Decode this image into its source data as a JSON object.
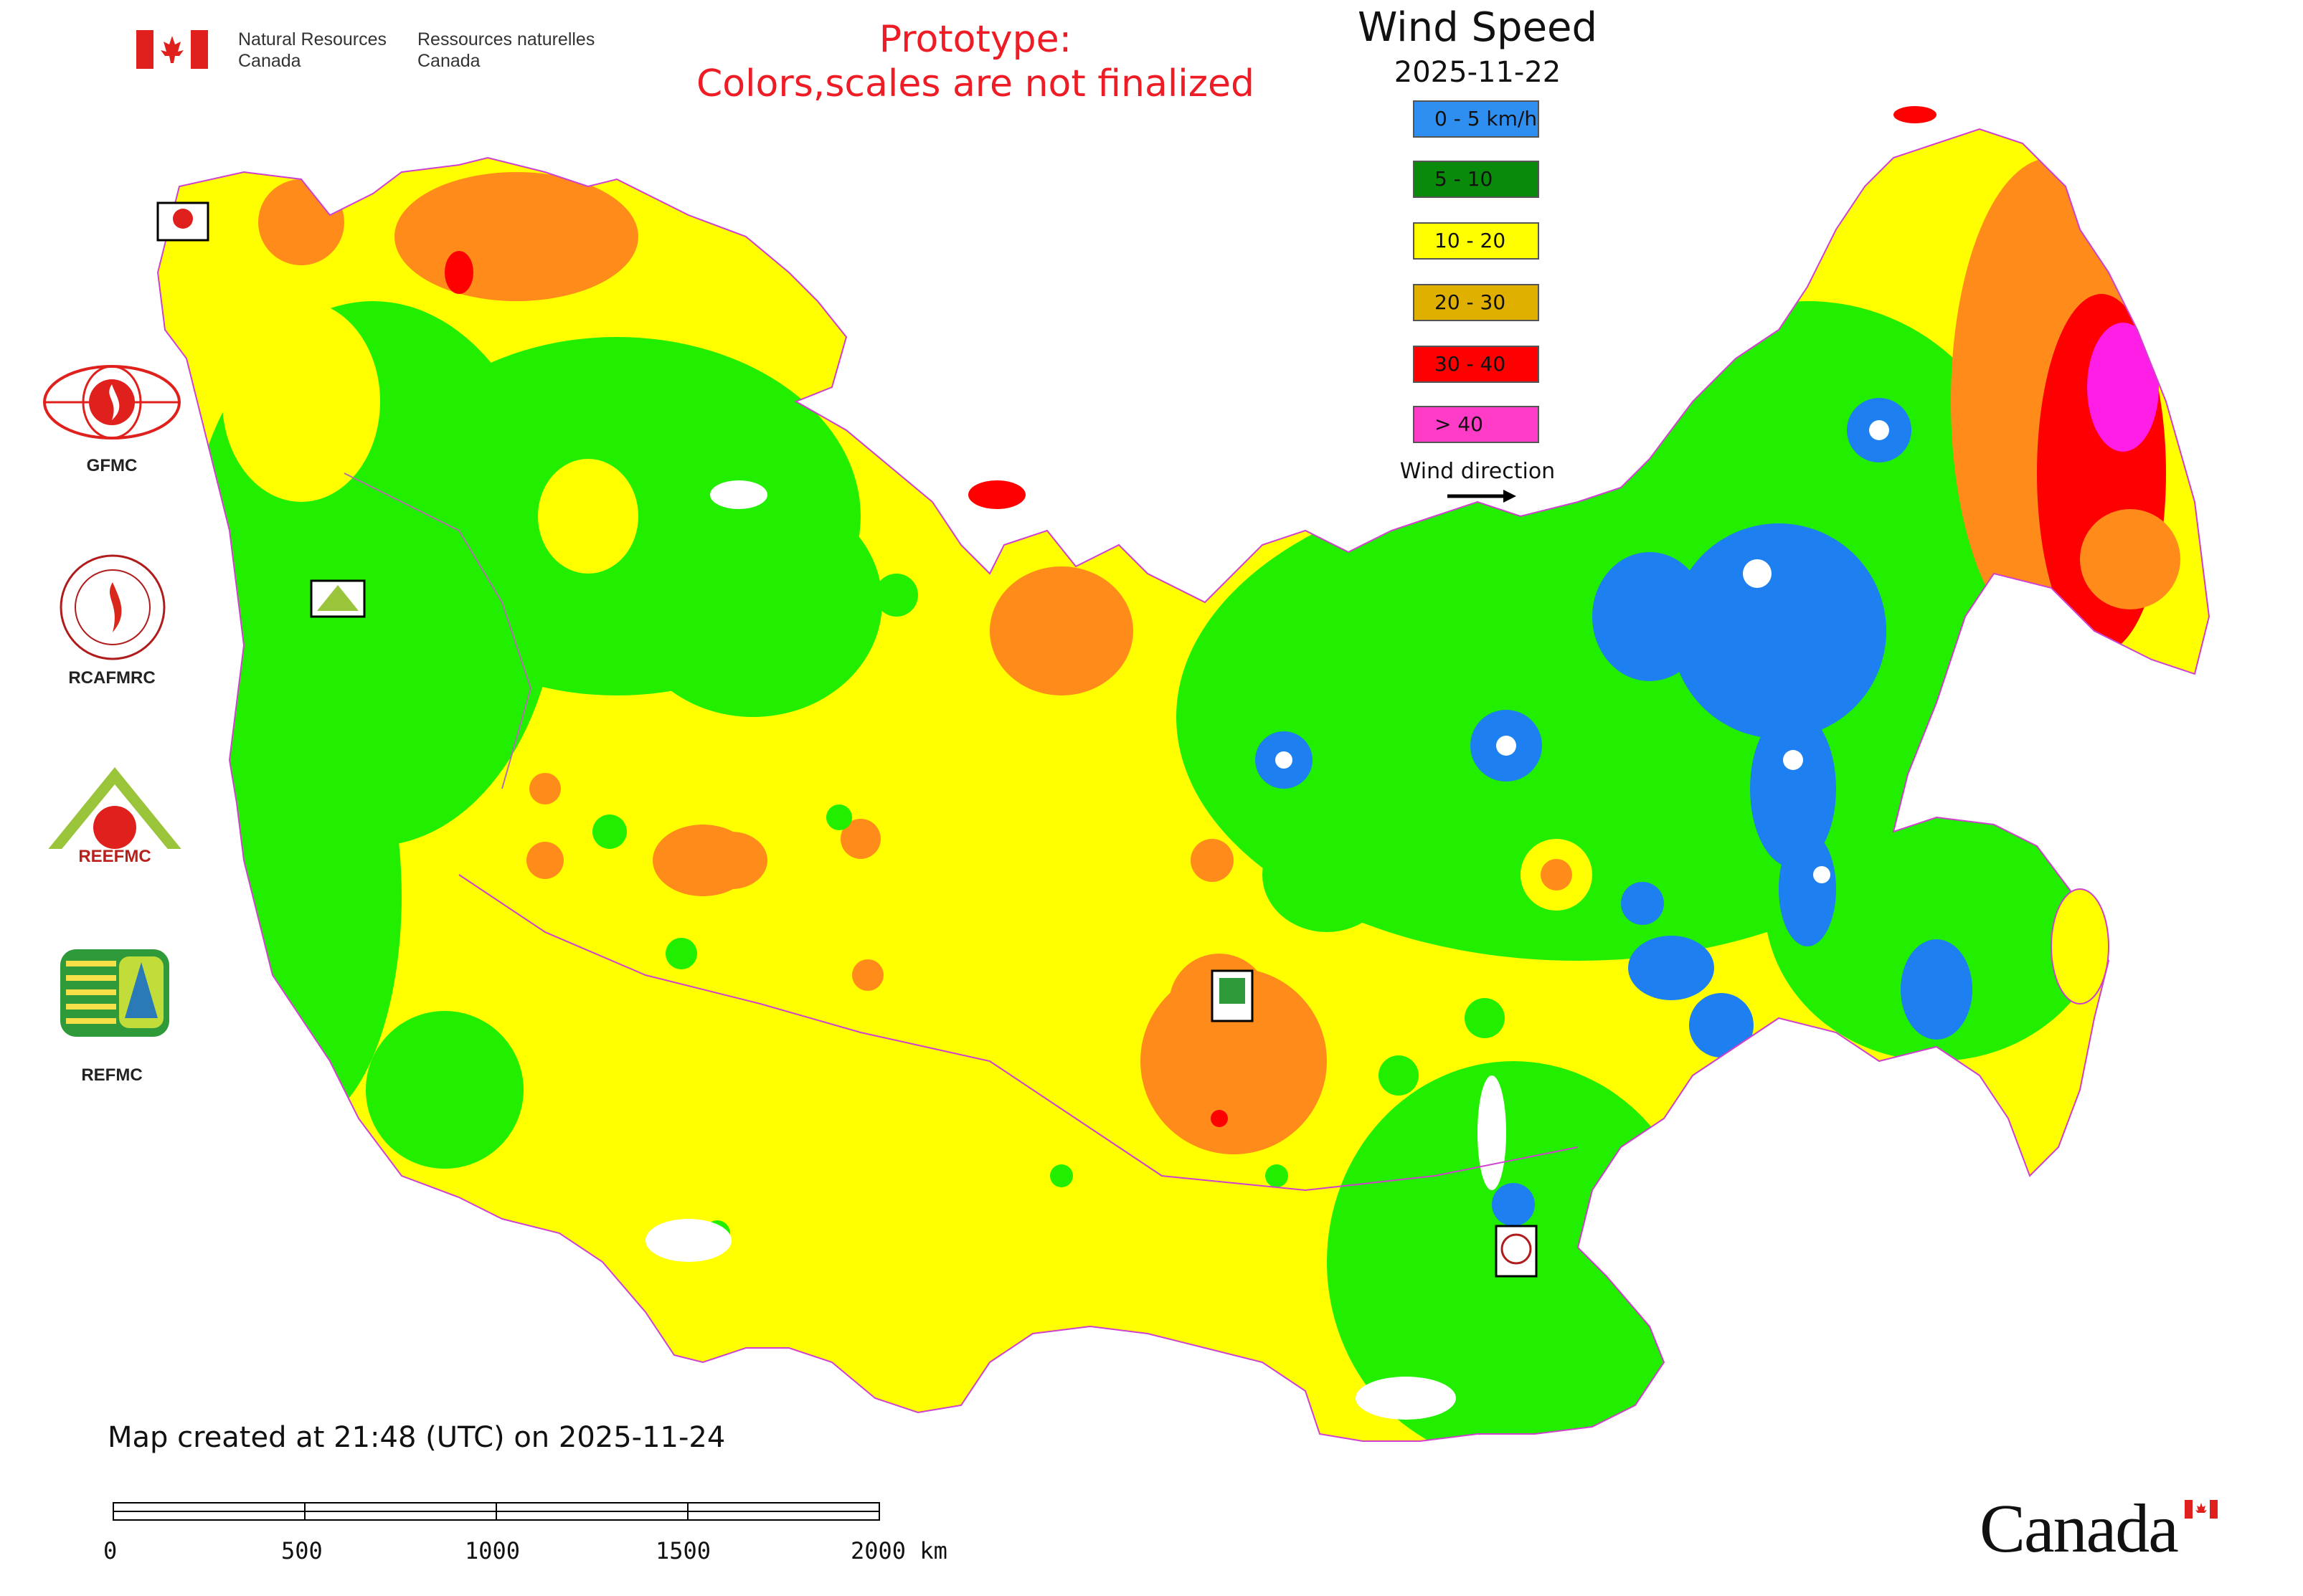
{
  "header": {
    "gov_en_line1": "Natural Resources",
    "gov_en_line2": "Canada",
    "gov_fr_line1": "Ressources naturelles",
    "gov_fr_line2": "Canada",
    "prototype_line1": "Prototype:",
    "prototype_line2": "Colors,scales are not finalized"
  },
  "legend": {
    "title": "Wind Speed",
    "date": "2025-11-22",
    "items": [
      {
        "label": "0 - 5 km/h",
        "color": "#2e8ff0"
      },
      {
        "label": "5 - 10",
        "color": "#0a8a0a"
      },
      {
        "label": "10 - 20",
        "color": "#ffff00"
      },
      {
        "label": "20 - 30",
        "color": "#e0b000"
      },
      {
        "label": "30 - 40",
        "color": "#ff0000"
      },
      {
        "label": "> 40",
        "color": "#ff3cc8"
      }
    ],
    "wind_direction_label": "Wind direction"
  },
  "map_colors": {
    "calm": "#1e7ff0",
    "light": "#22ee00",
    "moderate": "#ffff00",
    "fresh": "#ff8c1a",
    "strong": "#ff0000",
    "gale": "#ff1ee6",
    "water": "#ffffff",
    "border": "#d040d0"
  },
  "logos": [
    {
      "name": "GFMC",
      "label": "GFMC"
    },
    {
      "name": "RCAFMRC",
      "label": "RCAFMRC"
    },
    {
      "name": "REEFMC",
      "label": "REEFMC"
    },
    {
      "name": "REFMC",
      "label": "REFMC"
    }
  ],
  "footer": {
    "created": "Map created at 21:48 (UTC) on 2025-11-24",
    "scale_labels": [
      "0",
      "500",
      "1000",
      "1500",
      "2000 km"
    ],
    "wordmark": "Canada"
  }
}
